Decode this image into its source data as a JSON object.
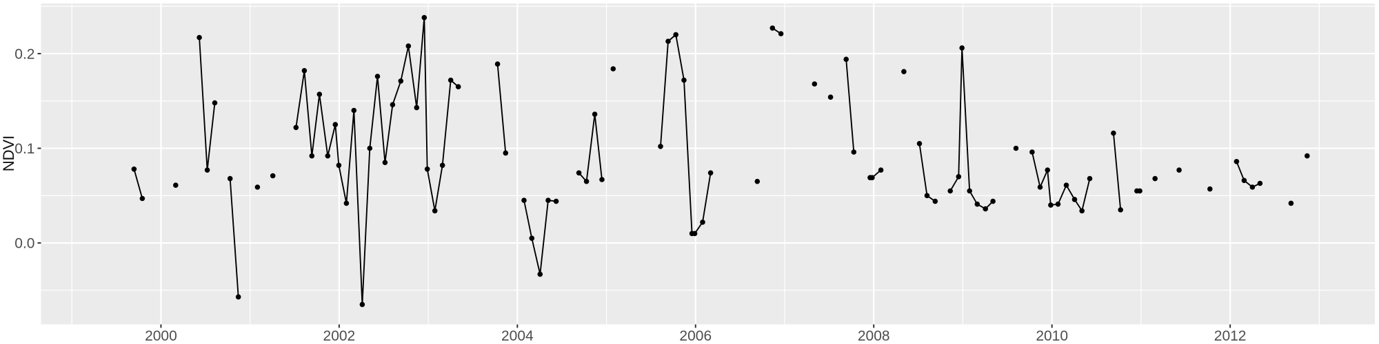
{
  "chart_data": {
    "type": "line",
    "title": "",
    "xlabel": "",
    "ylabel": "NDVI",
    "legend": "none",
    "grid": true,
    "x_range": [
      1998.654,
      2013.624
    ],
    "y_range": [
      -0.086,
      0.253
    ],
    "x_major_ticks": [
      2000,
      2002,
      2004,
      2006,
      2008,
      2010,
      2012
    ],
    "x_tick_labels": [
      "2000",
      "2002",
      "2004",
      "2006",
      "2008",
      "2010",
      "2012"
    ],
    "x_minor_ticks": [
      1999,
      2001,
      2003,
      2005,
      2007,
      2009,
      2011,
      2013
    ],
    "y_major_ticks": [
      0.0,
      0.1,
      0.2
    ],
    "y_tick_labels": [
      "0.0",
      "0.1",
      "0.2"
    ],
    "y_minor_ticks": [
      -0.05,
      0.05,
      0.15,
      0.25
    ],
    "series": [
      {
        "name": "NDVI",
        "runs": [
          [
            [
              1999.698,
              0.078
            ],
            [
              1999.791,
              0.047
            ]
          ],
          [
            [
              2000.165,
              0.061
            ]
          ],
          [
            [
              2000.431,
              0.217
            ],
            [
              2000.52,
              0.077
            ],
            [
              2000.604,
              0.148
            ]
          ],
          [
            [
              2000.776,
              0.068
            ],
            [
              2000.869,
              -0.057
            ]
          ],
          [
            [
              2001.083,
              0.059
            ]
          ],
          [
            [
              2001.256,
              0.071
            ]
          ],
          [
            [
              2001.516,
              0.122
            ],
            [
              2001.609,
              0.182
            ],
            [
              2001.694,
              0.092
            ],
            [
              2001.779,
              0.157
            ],
            [
              2001.872,
              0.092
            ],
            [
              2001.957,
              0.125
            ],
            [
              2001.996,
              0.082
            ],
            [
              2002.081,
              0.042
            ],
            [
              2002.166,
              0.14
            ],
            [
              2002.259,
              -0.065
            ],
            [
              2002.344,
              0.1
            ],
            [
              2002.43,
              0.176
            ],
            [
              2002.515,
              0.085
            ],
            [
              2002.6,
              0.146
            ],
            [
              2002.692,
              0.171
            ],
            [
              2002.777,
              0.208
            ],
            [
              2002.87,
              0.143
            ],
            [
              2002.955,
              0.238
            ],
            [
              2002.989,
              0.078
            ],
            [
              2003.074,
              0.034
            ],
            [
              2003.159,
              0.082
            ],
            [
              2003.252,
              0.172
            ],
            [
              2003.337,
              0.165
            ]
          ],
          [
            [
              2003.778,
              0.189
            ],
            [
              2003.868,
              0.095
            ]
          ],
          [
            [
              2004.075,
              0.045
            ],
            [
              2004.162,
              0.005
            ],
            [
              2004.255,
              -0.033
            ],
            [
              2004.346,
              0.045
            ],
            [
              2004.435,
              0.044
            ]
          ],
          [
            [
              2004.691,
              0.074
            ],
            [
              2004.776,
              0.065
            ],
            [
              2004.869,
              0.136
            ],
            [
              2004.949,
              0.067
            ]
          ],
          [
            [
              2005.075,
              0.184
            ]
          ],
          [
            [
              2005.607,
              0.102
            ],
            [
              2005.692,
              0.213
            ],
            [
              2005.779,
              0.22
            ],
            [
              2005.87,
              0.172
            ],
            [
              2005.96,
              0.01
            ],
            [
              2005.991,
              0.01
            ],
            [
              2006.079,
              0.022
            ],
            [
              2006.169,
              0.074
            ]
          ],
          [
            [
              2006.693,
              0.065
            ]
          ],
          [
            [
              2006.863,
              0.227
            ],
            [
              2006.958,
              0.221
            ]
          ],
          [
            [
              2007.335,
              0.168
            ]
          ],
          [
            [
              2007.515,
              0.154
            ]
          ],
          [
            [
              2007.69,
              0.194
            ],
            [
              2007.776,
              0.096
            ]
          ],
          [
            [
              2007.959,
              0.069
            ],
            [
              2007.982,
              0.069
            ],
            [
              2008.08,
              0.077
            ]
          ],
          [
            [
              2008.338,
              0.181
            ]
          ],
          [
            [
              2008.513,
              0.105
            ],
            [
              2008.598,
              0.05
            ],
            [
              2008.689,
              0.044
            ]
          ],
          [
            [
              2008.859,
              0.055
            ],
            [
              2008.952,
              0.07
            ],
            [
              2008.99,
              0.206
            ],
            [
              2009.075,
              0.055
            ],
            [
              2009.161,
              0.041
            ],
            [
              2009.253,
              0.036
            ],
            [
              2009.338,
              0.044
            ]
          ],
          [
            [
              2009.596,
              0.1
            ]
          ],
          [
            [
              2009.777,
              0.096
            ],
            [
              2009.867,
              0.059
            ],
            [
              2009.95,
              0.077
            ],
            [
              2009.986,
              0.04
            ],
            [
              2010.068,
              0.041
            ],
            [
              2010.161,
              0.061
            ],
            [
              2010.254,
              0.046
            ],
            [
              2010.337,
              0.034
            ],
            [
              2010.424,
              0.068
            ]
          ],
          [
            [
              2010.69,
              0.116
            ],
            [
              2010.77,
              0.035
            ]
          ],
          [
            [
              2010.953,
              0.055
            ],
            [
              2010.986,
              0.055
            ]
          ],
          [
            [
              2011.157,
              0.068
            ]
          ],
          [
            [
              2011.427,
              0.077
            ]
          ],
          [
            [
              2011.773,
              0.057
            ]
          ],
          [
            [
              2012.072,
              0.086
            ],
            [
              2012.157,
              0.066
            ],
            [
              2012.25,
              0.059
            ],
            [
              2012.335,
              0.063
            ]
          ],
          [
            [
              2012.683,
              0.042
            ]
          ],
          [
            [
              2012.864,
              0.092
            ]
          ]
        ]
      }
    ],
    "colors": {
      "panel_background": "#EBEBEB",
      "grid_major": "#FFFFFF",
      "grid_minor": "#FFFFFF",
      "point": "#000000",
      "line": "#000000",
      "tick_mark": "#333333",
      "tick_label": "#4D4D4D",
      "axis_title": "#111111",
      "outer_background": "#FFFFFF"
    }
  }
}
